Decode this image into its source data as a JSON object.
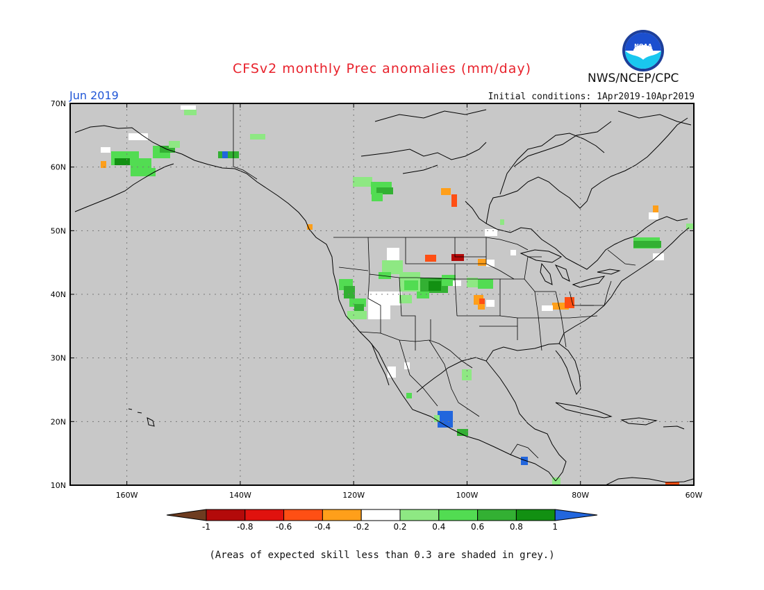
{
  "header": {
    "title": "CFSv2 monthly Prec anomalies (mm/day)",
    "agency": "NWS/NCEP/CPC",
    "logo_text": "NOAA",
    "month": "Jun 2019",
    "initial_conditions": "Initial conditions: 1Apr2019-10Apr2019"
  },
  "map": {
    "background": "#c8c8c8",
    "lat_labels": [
      "70N",
      "60N",
      "50N",
      "40N",
      "30N",
      "20N",
      "10N"
    ],
    "lon_labels": [
      "160W",
      "140W",
      "120W",
      "100W",
      "80W",
      "60W"
    ],
    "lat_range": [
      10,
      70
    ],
    "lon_range": [
      -170,
      -60
    ]
  },
  "legend": {
    "tick_labels": [
      "-1",
      "-0.8",
      "-0.6",
      "-0.4",
      "-0.2",
      "0.2",
      "0.4",
      "0.6",
      "0.8",
      "1"
    ],
    "colors": [
      "#6e3c20",
      "#b30a0a",
      "#e0120e",
      "#ff4f14",
      "#ff9f1a",
      "#ffffff",
      "#8ee883",
      "#52dc52",
      "#33b033",
      "#129012",
      "#2266dd"
    ]
  },
  "footnote": "(Areas of expected skill less than 0.3 are shaded in grey.)"
}
